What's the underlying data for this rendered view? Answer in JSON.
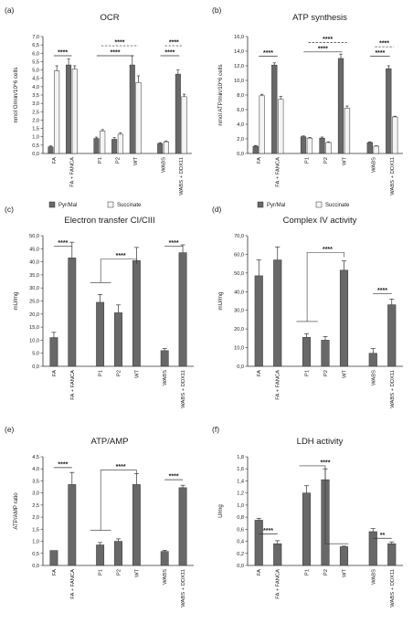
{
  "panels_meta": [
    "(a)",
    "(b)",
    "(c)",
    "(d)",
    "(e)",
    "(f)"
  ],
  "colors": {
    "dark": "#686868",
    "light": "#f4f4f4",
    "axis": "#333333"
  },
  "chart_data": [
    {
      "panel": "(a)",
      "type": "bar",
      "title": "OCR",
      "ylabel": "nmol O/min/10^6 cells",
      "xlabel": "",
      "ylim": [
        0,
        7
      ],
      "yticks": [
        "0,0",
        "0,5",
        "1,0",
        "1,5",
        "2,0",
        "2,5",
        "3,0",
        "3,5",
        "4,0",
        "4,5",
        "5,0",
        "5,5",
        "6,0",
        "6,5",
        "7,0"
      ],
      "categories": [
        "FA",
        "FA + FANCA",
        "P1",
        "P2",
        "WT",
        "WABS",
        "WABS + DDX11"
      ],
      "groups": [
        [
          0,
          1
        ],
        [
          2,
          3,
          4
        ],
        [
          5,
          6
        ]
      ],
      "series": [
        {
          "name": "Pyr/Mal",
          "values": [
            0.4,
            5.3,
            0.9,
            0.85,
            5.3,
            0.6,
            4.75
          ],
          "err": [
            0.05,
            0.35,
            0.08,
            0.1,
            0.55,
            0.05,
            0.25
          ]
        },
        {
          "name": "Succinate",
          "values": [
            4.95,
            5.05,
            1.35,
            1.15,
            4.25,
            0.7,
            3.4
          ],
          "err": [
            0.3,
            0.2,
            0.08,
            0.08,
            0.4,
            0.05,
            0.15
          ]
        }
      ],
      "legend": "bottom",
      "sig": [
        {
          "label": "****",
          "y": 5.85,
          "x1": 0,
          "x2": 1,
          "dashed": false
        },
        {
          "label": "****",
          "y": 6.45,
          "x1": 2.1,
          "x2": 4.1,
          "dashed": true
        },
        {
          "label": "****",
          "y": 5.85,
          "x1": 1.9,
          "x2": 3.9,
          "dashed": false
        },
        {
          "label": "****",
          "y": 6.45,
          "x1": 5.1,
          "x2": 6.1,
          "dashed": true
        },
        {
          "label": "****",
          "y": 5.85,
          "x1": 4.9,
          "x2": 5.9,
          "dashed": false
        }
      ]
    },
    {
      "panel": "(b)",
      "type": "bar",
      "title": "ATP synthesis",
      "ylabel": "nmol ATP/min/10^6 cells",
      "xlabel": "",
      "ylim": [
        0,
        16
      ],
      "yticks": [
        "0,0",
        "2,0",
        "4,0",
        "6,0",
        "8,0",
        "10,0",
        "12,0",
        "14,0",
        "16,0"
      ],
      "categories": [
        "FA",
        "FA + FANCA",
        "P1",
        "P2",
        "WT",
        "WABS",
        "WABS + DDX11"
      ],
      "groups": [
        [
          0,
          1
        ],
        [
          2,
          3,
          4
        ],
        [
          5,
          6
        ]
      ],
      "series": [
        {
          "name": "Pyr/Mal",
          "values": [
            1.0,
            12.1,
            2.3,
            2.1,
            13.0,
            1.5,
            11.6
          ],
          "err": [
            0.1,
            0.3,
            0.1,
            0.15,
            0.6,
            0.1,
            0.4
          ]
        },
        {
          "name": "Succinate",
          "values": [
            7.9,
            7.4,
            2.1,
            1.5,
            6.2,
            1.0,
            5.0
          ],
          "err": [
            0.2,
            0.4,
            0.1,
            0.1,
            0.3,
            0.05,
            0.1
          ]
        }
      ],
      "legend": "bottom",
      "sig": [
        {
          "label": "****",
          "y": 13.3,
          "x1": 0,
          "x2": 1,
          "dashed": false
        },
        {
          "label": "****",
          "y": 15.2,
          "x1": 2.1,
          "x2": 4.1,
          "dashed": true
        },
        {
          "label": "****",
          "y": 13.9,
          "x1": 1.9,
          "x2": 3.9,
          "dashed": false
        },
        {
          "label": "****",
          "y": 14.6,
          "x1": 5.1,
          "x2": 6.1,
          "dashed": true
        },
        {
          "label": "****",
          "y": 13.3,
          "x1": 4.9,
          "x2": 5.9,
          "dashed": false
        }
      ]
    },
    {
      "panel": "(c)",
      "type": "bar",
      "title": "Electron transfer CI/CIII",
      "ylabel": "mU/mg",
      "xlabel": "",
      "ylim": [
        0,
        50
      ],
      "yticks": [
        "0,0",
        "5,0",
        "10,0",
        "15,0",
        "20,0",
        "25,0",
        "30,0",
        "35,0",
        "40,0",
        "45,0",
        "50,0"
      ],
      "categories": [
        "FA",
        "FA + FANCA",
        "P1",
        "P2",
        "WT",
        "WABS",
        "WABS + DDX11"
      ],
      "groups": [
        [
          0,
          1
        ],
        [
          2,
          3,
          4
        ],
        [
          5,
          6
        ]
      ],
      "series": [
        {
          "name": "",
          "values": [
            11.0,
            41.5,
            24.5,
            20.5,
            40.5,
            6.0,
            43.5
          ],
          "err": [
            2.0,
            6.0,
            3.0,
            3.0,
            5.0,
            0.8,
            3.0
          ]
        }
      ],
      "sig": [
        {
          "label": "****",
          "y": 46.0,
          "x1": 0,
          "x2": 1,
          "bracket": "simple"
        },
        {
          "label": "****",
          "y": 41.0,
          "x1": 2,
          "x2": 4,
          "bracket": "group",
          "low": 32.0,
          "lowx1": 1.65,
          "lowx2": 2.6
        },
        {
          "label": "****",
          "y": 46.0,
          "x1": 5,
          "x2": 6,
          "bracket": "simple"
        }
      ]
    },
    {
      "panel": "(d)",
      "type": "bar",
      "title": "Complex IV activity",
      "ylabel": "mU/mg",
      "xlabel": "",
      "ylim": [
        0,
        70
      ],
      "yticks": [
        "0,0",
        "10,0",
        "20,0",
        "30,0",
        "40,0",
        "50,0",
        "60,0",
        "70,0"
      ],
      "categories": [
        "FA",
        "FA + FANCA",
        "P1",
        "P2",
        "WT",
        "WABS",
        "WABS + DDX11"
      ],
      "groups": [
        [
          0,
          1
        ],
        [
          2,
          3,
          4
        ],
        [
          5,
          6
        ]
      ],
      "series": [
        {
          "name": "",
          "values": [
            48.5,
            57.0,
            15.5,
            14.0,
            51.5,
            7.0,
            33.0
          ],
          "err": [
            8.5,
            7.0,
            2.0,
            2.0,
            5.0,
            2.5,
            3.0
          ]
        }
      ],
      "sig": [
        {
          "label": "****",
          "y": 61.0,
          "x1": 2,
          "x2": 4,
          "bracket": "group",
          "low": 24.0,
          "lowx1": 1.65,
          "lowx2": 2.6
        },
        {
          "label": "****",
          "y": 39.0,
          "x1": 5,
          "x2": 6,
          "bracket": "simple"
        }
      ]
    },
    {
      "panel": "(e)",
      "type": "bar",
      "title": "ATP/AMP",
      "ylabel": "ATP/AMP ratio",
      "xlabel": "",
      "ylim": [
        0,
        4.5
      ],
      "yticks": [
        "0,0",
        "0,5",
        "1,0",
        "1,5",
        "2,0",
        "2,5",
        "3,0",
        "3,5",
        "4,0",
        "4,5"
      ],
      "categories": [
        "FA",
        "FA + FANCA",
        "P1",
        "P2",
        "WT",
        "WABS",
        "WABS + DDX11"
      ],
      "groups": [
        [
          0,
          1
        ],
        [
          2,
          3,
          4
        ],
        [
          5,
          6
        ]
      ],
      "series": [
        {
          "name": "",
          "values": [
            0.62,
            3.35,
            0.85,
            1.0,
            3.35,
            0.58,
            3.22
          ],
          "err": [
            0.0,
            0.5,
            0.1,
            0.1,
            0.45,
            0.05,
            0.1
          ]
        }
      ],
      "sig": [
        {
          "label": "****",
          "y": 4.05,
          "x1": 0,
          "x2": 1,
          "bracket": "simple"
        },
        {
          "label": "****",
          "y": 3.95,
          "x1": 2,
          "x2": 4,
          "bracket": "group",
          "low": 1.45,
          "lowx1": 1.65,
          "lowx2": 2.6
        },
        {
          "label": "****",
          "y": 3.55,
          "x1": 5,
          "x2": 6,
          "bracket": "simple"
        }
      ]
    },
    {
      "panel": "(f)",
      "type": "bar",
      "title": "LDH activity",
      "ylabel": "U/mg",
      "xlabel": "",
      "ylim": [
        0,
        1.8
      ],
      "yticks": [
        "0,0",
        "0,2",
        "0,4",
        "0,6",
        "0,8",
        "1,0",
        "1,2",
        "1,4",
        "1,6",
        "1,8"
      ],
      "categories": [
        "FA",
        "FA + FANCA",
        "P1",
        "P2",
        "WT",
        "WABS",
        "WABS + DDX11"
      ],
      "groups": [
        [
          0,
          1
        ],
        [
          2,
          3,
          4
        ],
        [
          5,
          6
        ]
      ],
      "series": [
        {
          "name": "",
          "values": [
            0.75,
            0.36,
            1.2,
            1.42,
            0.31,
            0.56,
            0.36
          ],
          "err": [
            0.03,
            0.05,
            0.12,
            0.18,
            0.01,
            0.05,
            0.03
          ]
        }
      ],
      "sig": [
        {
          "label": "****",
          "y": 0.52,
          "x1": 0,
          "x2": 1,
          "bracket": "simple"
        },
        {
          "label": "****",
          "y": 1.65,
          "x1": 2,
          "x2": 4,
          "bracket": "inverted",
          "low": 0.36,
          "lowx": 4.15
        },
        {
          "label": "**",
          "y": 0.45,
          "x1": 5,
          "x2": 6,
          "bracket": "simple"
        }
      ]
    }
  ]
}
